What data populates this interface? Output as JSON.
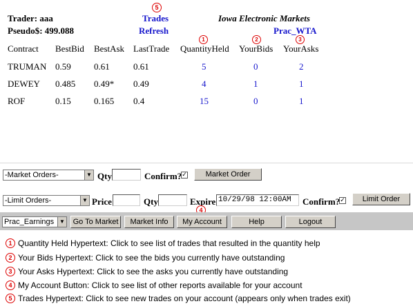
{
  "header": {
    "trader_label": "Trader: aaa",
    "pseudo_label": "Pseudo$: 499.088",
    "trades_link": "Trades",
    "refresh_link": "Refresh",
    "market_title": "Iowa Electronic Markets",
    "market_name": "Prac_WTA"
  },
  "table": {
    "columns": [
      "Contract",
      "BestBid",
      "BestAsk",
      "LastTrade",
      "QuantityHeld",
      "YourBids",
      "YourAsks"
    ],
    "rows": [
      {
        "contract": "TRUMAN",
        "best_bid": "0.59",
        "best_ask": "0.61",
        "last_trade": "0.61",
        "quantity_held": "5",
        "your_bids": "0",
        "your_asks": "2"
      },
      {
        "contract": "DEWEY",
        "best_bid": "0.485",
        "best_ask": "0.49*",
        "last_trade": "0.49",
        "quantity_held": "4",
        "your_bids": "1",
        "your_asks": "1"
      },
      {
        "contract": "ROF",
        "best_bid": "0.15",
        "best_ask": "0.165",
        "last_trade": "0.4",
        "quantity_held": "15",
        "your_bids": "0",
        "your_asks": "1"
      }
    ]
  },
  "market_order": {
    "select_value": "-Market Orders-",
    "qty_label": "Qty",
    "qty_value": "",
    "confirm_label": "Confirm?",
    "confirm_checked": "✓",
    "button_label": "Market Order"
  },
  "limit_order": {
    "select_value": "-Limit Orders-",
    "price_label": "Price",
    "price_value": "",
    "qty_label": "Qty",
    "qty_value": "",
    "expire_label": "Expire",
    "expire_value": "10/29/98 12:00AM",
    "confirm_label": "Confirm?",
    "confirm_checked": "✓",
    "button_label": "Limit Order"
  },
  "nav_bar": {
    "select_value": "Prac_Earnings",
    "go_to_market": "Go To Market",
    "market_info": "Market Info",
    "my_account": "My Account",
    "help": "Help",
    "logout": "Logout"
  },
  "markers": [
    "1",
    "2",
    "3",
    "4",
    "5"
  ],
  "legend": [
    {
      "num": "1",
      "text": "Quantity Held Hypertext:  Click to see list of trades that resulted in the quantity help"
    },
    {
      "num": "2",
      "text": "Your Bids Hypertext:  Click to see the bids you currently have outstanding"
    },
    {
      "num": "3",
      "text": "Your Asks Hypertext:  Click to see the asks you currently have outstanding"
    },
    {
      "num": "4",
      "text": "My Account Button:  Click to see list of other reports available for your account"
    },
    {
      "num": "5",
      "text": "Trades Hypertext:  Click to see new trades on your account (appears only when trades exit)"
    }
  ],
  "colors": {
    "link": "#1515cc",
    "marker": "#dd0000",
    "bar": "#c6c6c6",
    "button": "#d4d0c8"
  }
}
